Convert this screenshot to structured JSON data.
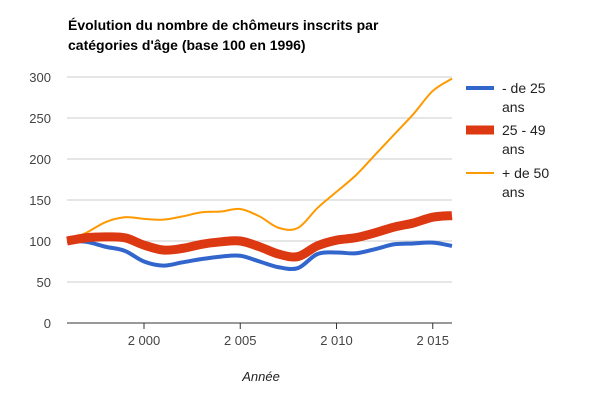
{
  "chart_data": {
    "type": "line",
    "title_lines": [
      "Évolution du nombre de chômeurs inscrits par",
      "catégories d'âge (base 100 en 1996)"
    ],
    "xlabel": "Année",
    "ylabel": "",
    "xlim": [
      1996,
      2016
    ],
    "ylim": [
      0,
      300
    ],
    "x_ticks": [
      2000,
      2005,
      2010,
      2015
    ],
    "x_tick_labels": [
      "2 000",
      "2 005",
      "2 010",
      "2 015"
    ],
    "y_ticks": [
      0,
      50,
      100,
      150,
      200,
      250,
      300
    ],
    "y_tick_labels": [
      "0",
      "50",
      "100",
      "150",
      "200",
      "250",
      "300"
    ],
    "grid": "horizontal",
    "legend_position": "right",
    "x": [
      1996,
      1997,
      1998,
      1999,
      2000,
      2001,
      2002,
      2003,
      2004,
      2005,
      2006,
      2007,
      2008,
      2009,
      2010,
      2011,
      2012,
      2013,
      2014,
      2015,
      2016
    ],
    "series": [
      {
        "name_lines": [
          "- de 25",
          "ans"
        ],
        "color": "#3366cc",
        "width": 4,
        "values": [
          100,
          99,
          93,
          88,
          75,
          70,
          74,
          78,
          81,
          82,
          75,
          68,
          67,
          84,
          86,
          85,
          90,
          96,
          97,
          98,
          94
        ]
      },
      {
        "name_lines": [
          "25 - 49",
          "ans"
        ],
        "color": "#dc3912",
        "width": 9,
        "values": [
          100,
          104,
          105,
          104,
          95,
          89,
          91,
          96,
          99,
          100,
          93,
          84,
          81,
          94,
          101,
          104,
          110,
          117,
          122,
          129,
          131
        ]
      },
      {
        "name_lines": [
          "+ de 50",
          "ans"
        ],
        "color": "#ff9900",
        "width": 2,
        "values": [
          100,
          110,
          123,
          129,
          127,
          126,
          130,
          135,
          136,
          139,
          130,
          116,
          116,
          140,
          160,
          180,
          205,
          230,
          255,
          283,
          298
        ]
      }
    ]
  }
}
